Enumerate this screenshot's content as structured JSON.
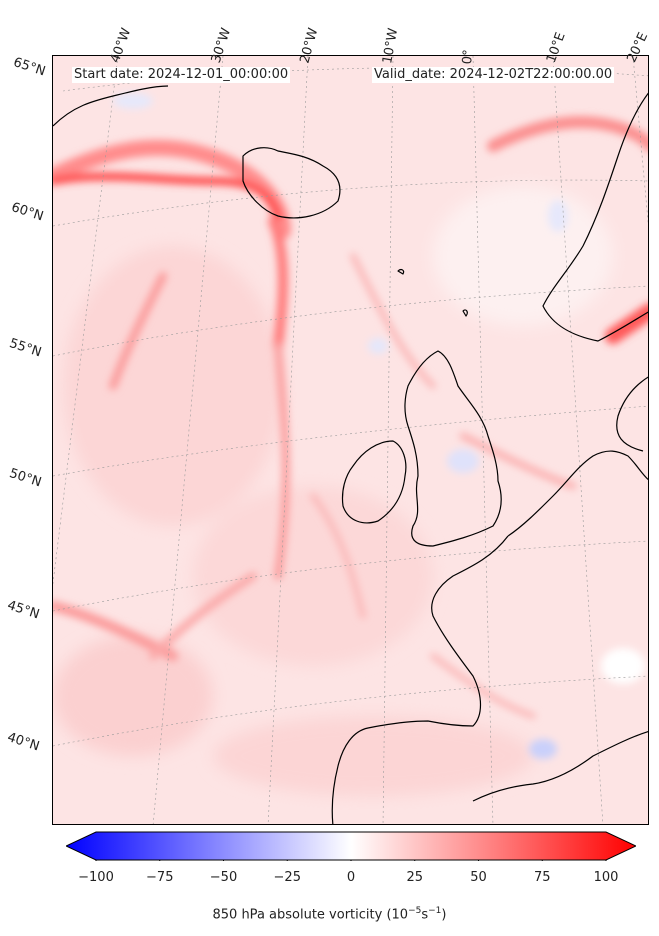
{
  "header": {
    "start_date": "Start date: 2024-12-01_00:00:00",
    "valid_date": "Valid_date: 2024-12-02T22:00:00.00"
  },
  "longitude_labels": [
    "40°W",
    "30°W",
    "20°W",
    "10°W",
    "0°",
    "10°E",
    "20°E"
  ],
  "latitude_labels": [
    "65°N",
    "60°N",
    "55°N",
    "50°N",
    "45°N",
    "40°N"
  ],
  "colorbar": {
    "min": -100,
    "max": 100,
    "ticks": [
      "−100",
      "−75",
      "−50",
      "−25",
      "0",
      "25",
      "50",
      "75",
      "100"
    ],
    "tick_values": [
      -100,
      -75,
      -50,
      -25,
      0,
      25,
      50,
      75,
      100
    ],
    "label": "850 hPa absolute vorticity (10",
    "label_exp1": "−5",
    "label_mid": "s",
    "label_exp2": "−1",
    "label_end": ")",
    "colors": {
      "negative": "#0000ff",
      "zero": "#ffffff",
      "positive": "#ff0000"
    },
    "extend": "both"
  },
  "map": {
    "background_color": "#fde8e8",
    "coastline_color": "#000000",
    "gridline_color": "#999999"
  }
}
